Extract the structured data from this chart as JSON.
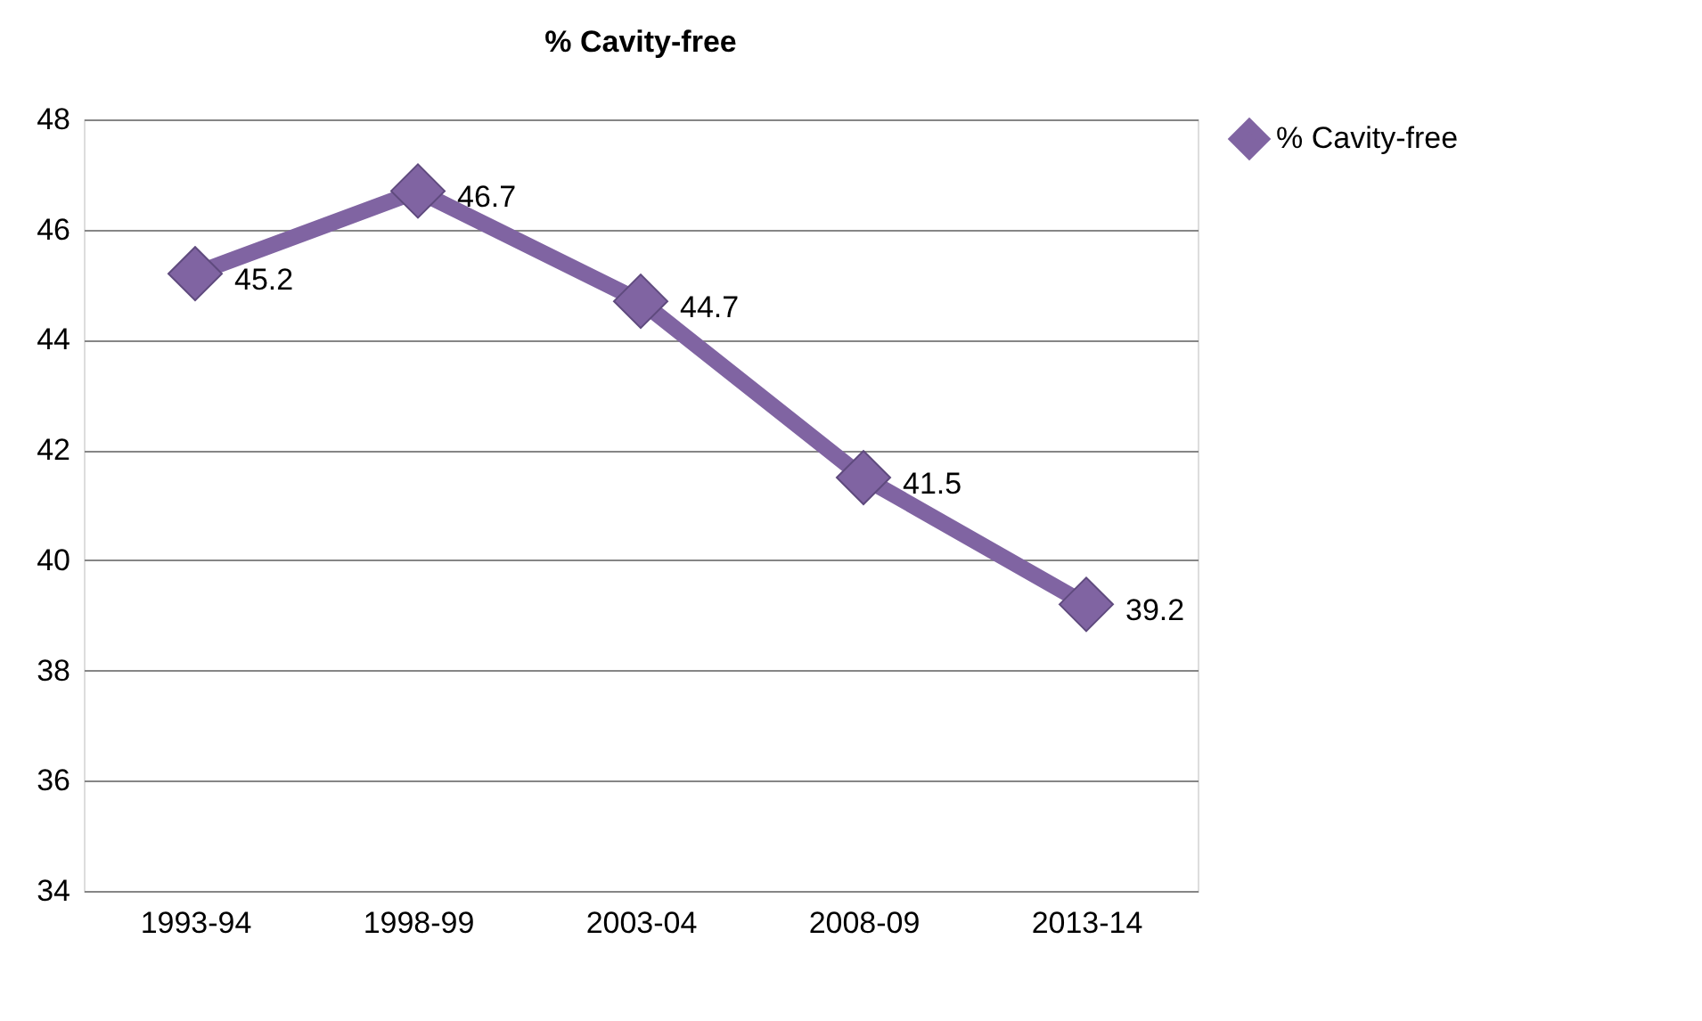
{
  "chart_data": {
    "type": "line",
    "title": "% Cavity-free",
    "categories": [
      "1993-94",
      "1998-99",
      "2003-04",
      "2008-09",
      "2013-14"
    ],
    "series": [
      {
        "name": "% Cavity-free",
        "color": "#8064a2",
        "values": [
          45.2,
          46.7,
          44.7,
          41.5,
          39.2
        ]
      }
    ],
    "ylim": [
      34,
      48
    ],
    "yticks": [
      34,
      36,
      38,
      40,
      42,
      44,
      46,
      48
    ],
    "grid": "y",
    "legend": "right",
    "marker": "diamond",
    "line_style": "solid",
    "data_labels": true
  }
}
